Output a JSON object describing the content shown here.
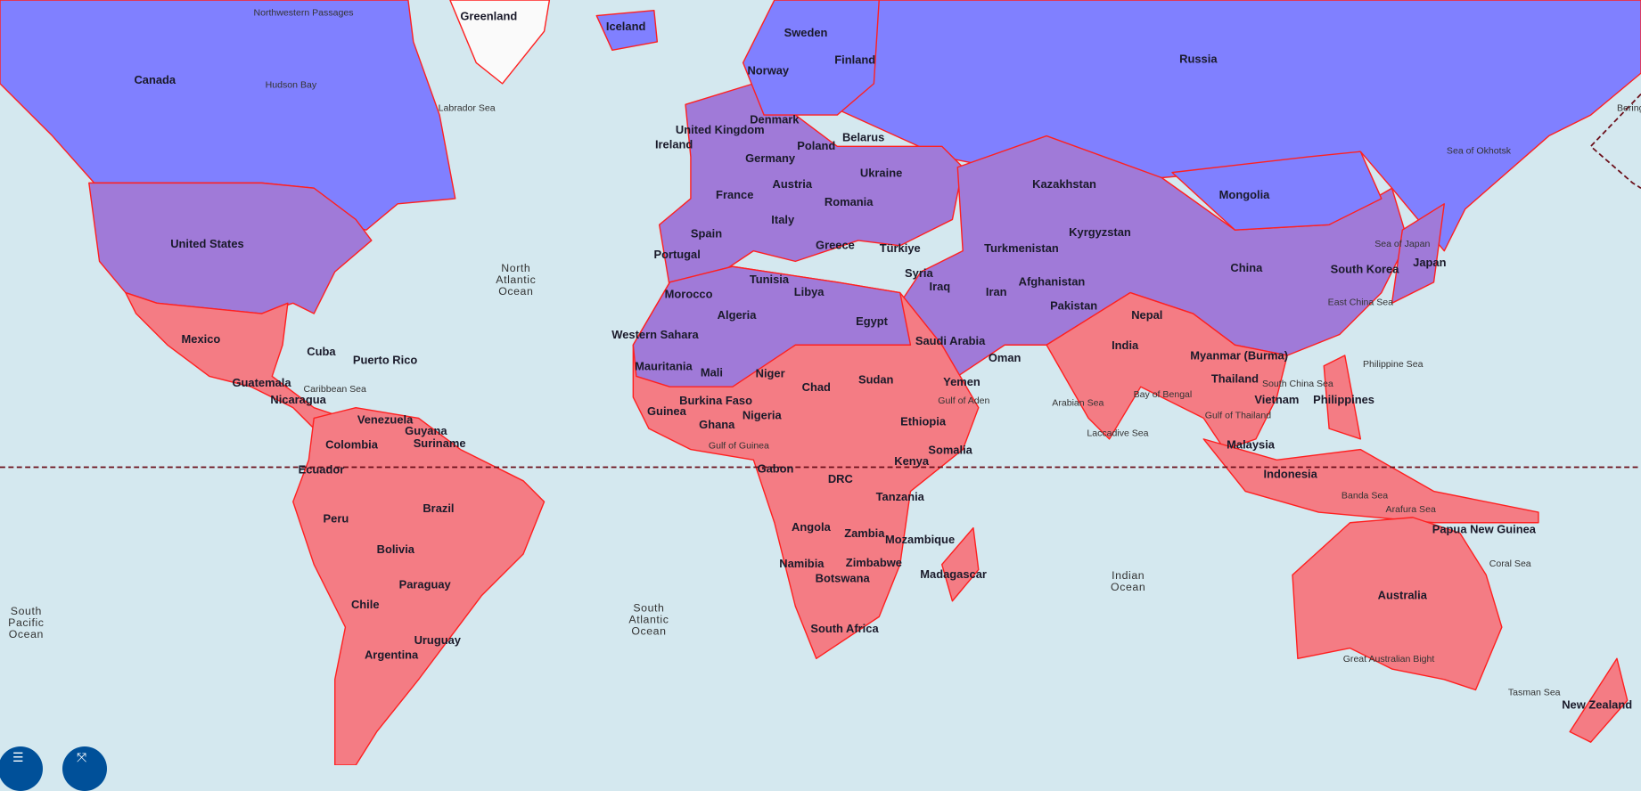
{
  "colors": {
    "ocean": "#d4e8ef",
    "north": "#8080ff",
    "mid": "#a07ad8",
    "south": "#f47c84",
    "border": "#ff2020",
    "equator": "#6b0f1a",
    "control": "#005099"
  },
  "labels": [
    "Canada",
    "United States",
    "Mexico",
    "Cuba",
    "Puerto Rico",
    "Guatemala",
    "Nicaragua",
    "Venezuela",
    "Guyana",
    "Suriname",
    "Colombia",
    "Ecuador",
    "Peru",
    "Brazil",
    "Bolivia",
    "Paraguay",
    "Chile",
    "Argentina",
    "Uruguay",
    "Greenland",
    "Iceland",
    "Norway",
    "Sweden",
    "Finland",
    "Russia",
    "United Kingdom",
    "Ireland",
    "Denmark",
    "Poland",
    "Belarus",
    "Germany",
    "Ukraine",
    "France",
    "Austria",
    "Romania",
    "Italy",
    "Spain",
    "Portugal",
    "Greece",
    "Türkiye",
    "Kazakhstan",
    "Mongolia",
    "Turkmenistan",
    "Kyrgyzstan",
    "Syria",
    "Iraq",
    "Iran",
    "Afghanistan",
    "Pakistan",
    "Nepal",
    "India",
    "China",
    "South Korea",
    "Japan",
    "Myanmar (Burma)",
    "Thailand",
    "Vietnam",
    "Philippines",
    "Malaysia",
    "Indonesia",
    "Papua New Guinea",
    "Australia",
    "New Zealand",
    "Tunisia",
    "Morocco",
    "Algeria",
    "Libya",
    "Egypt",
    "Western Sahara",
    "Mauritania",
    "Mali",
    "Niger",
    "Chad",
    "Sudan",
    "Burkina Faso",
    "Guinea",
    "Ghana",
    "Nigeria",
    "Ethiopia",
    "Somalia",
    "Kenya",
    "Gabon",
    "DRC",
    "Tanzania",
    "Angola",
    "Zambia",
    "Mozambique",
    "Zimbabwe",
    "Namibia",
    "Botswana",
    "South Africa",
    "Madagascar",
    "Saudi Arabia",
    "Oman",
    "Yemen"
  ],
  "seas": [
    "Northwestern Passages",
    "Hudson Bay",
    "Labrador Sea",
    "Caribbean Sea",
    "Gulf of Guinea",
    "Gulf of Aden",
    "Arabian Sea",
    "Laccadive Sea",
    "Bay of Bengal",
    "Gulf of Thailand",
    "South China Sea",
    "Philippine Sea",
    "East China Sea",
    "Sea of Japan",
    "Sea of Okhotsk",
    "Banda Sea",
    "Arafura Sea",
    "Coral Sea",
    "Tasman Sea",
    "Great Australian Bight",
    "Bering"
  ],
  "oceans": [
    [
      "North",
      "Atlantic",
      "Ocean"
    ],
    [
      "South",
      "Atlantic",
      "Ocean"
    ],
    [
      "South",
      "Pacific",
      "Ocean"
    ],
    [
      "Indian",
      "Ocean"
    ]
  ],
  "controls": [
    {
      "icon": "layers-icon"
    },
    {
      "icon": "expand-icon"
    }
  ]
}
